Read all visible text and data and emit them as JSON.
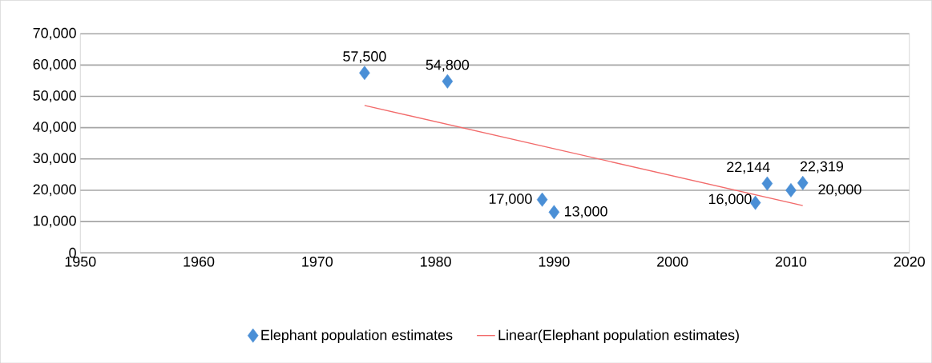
{
  "chart_data": {
    "type": "scatter",
    "grid": "y",
    "legend": "bottom",
    "xlim": [
      1950,
      2020
    ],
    "xticks": [
      1950,
      1960,
      1970,
      1980,
      1990,
      2000,
      2010,
      2020
    ],
    "ylim": [
      0,
      70000
    ],
    "yticks": [
      0,
      {
        "value": 10000,
        "label": "10,000"
      },
      {
        "value": 20000,
        "label": "20,000"
      },
      {
        "value": 30000,
        "label": "30,000"
      },
      {
        "value": 40000,
        "label": "40,000"
      },
      {
        "value": 50000,
        "label": "50,000"
      },
      {
        "value": 60000,
        "label": "60,000"
      },
      {
        "value": 70000,
        "label": "70,000"
      }
    ],
    "series": [
      {
        "name": "Elephant population estimates",
        "marker": "diamond",
        "color": "#4a8fd6",
        "x": [
          1974,
          1981,
          1989,
          1990,
          2007,
          2008,
          2010,
          2011
        ],
        "values": [
          57500,
          54800,
          17000,
          13000,
          16000,
          22144,
          20000,
          22319
        ],
        "value_labels": [
          "57,500",
          "54,800",
          "17,000",
          "13,000",
          "16,000",
          "22,144",
          "20,000",
          "22,319"
        ]
      },
      {
        "name": "Linear(Elephant population estimates)",
        "type": "line",
        "color": "#f26b6b",
        "x": [
          1974,
          2011
        ],
        "values": [
          47100,
          15100
        ]
      }
    ]
  }
}
